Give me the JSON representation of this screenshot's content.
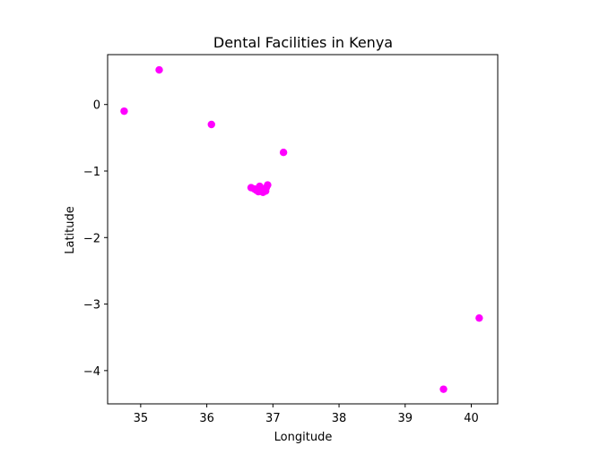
{
  "chart_data": {
    "type": "scatter",
    "title": "Dental Facilities in Kenya",
    "xlabel": "Longitude",
    "ylabel": "Latitude",
    "xlim": [
      34.5,
      40.4
    ],
    "ylim": [
      -4.5,
      0.75
    ],
    "x_ticks": [
      35,
      36,
      37,
      38,
      39,
      40
    ],
    "y_ticks": [
      0,
      -1,
      -2,
      -3,
      -4
    ],
    "x_tick_labels": [
      "35",
      "36",
      "37",
      "38",
      "39",
      "40"
    ],
    "y_tick_labels": [
      "0",
      "−1",
      "−2",
      "−3",
      "−4"
    ],
    "grid": false,
    "marker_color": "#ff00ff",
    "points": [
      {
        "x": 35.28,
        "y": 0.52
      },
      {
        "x": 34.75,
        "y": -0.1
      },
      {
        "x": 36.07,
        "y": -0.3
      },
      {
        "x": 37.16,
        "y": -0.72
      },
      {
        "x": 36.67,
        "y": -1.25
      },
      {
        "x": 36.72,
        "y": -1.27
      },
      {
        "x": 36.75,
        "y": -1.29
      },
      {
        "x": 36.78,
        "y": -1.31
      },
      {
        "x": 36.8,
        "y": -1.23
      },
      {
        "x": 36.81,
        "y": -1.28
      },
      {
        "x": 36.83,
        "y": -1.3
      },
      {
        "x": 36.85,
        "y": -1.32
      },
      {
        "x": 36.87,
        "y": -1.27
      },
      {
        "x": 36.89,
        "y": -1.3
      },
      {
        "x": 36.9,
        "y": -1.25
      },
      {
        "x": 36.92,
        "y": -1.21
      },
      {
        "x": 40.12,
        "y": -3.21
      },
      {
        "x": 39.58,
        "y": -4.28
      }
    ]
  }
}
